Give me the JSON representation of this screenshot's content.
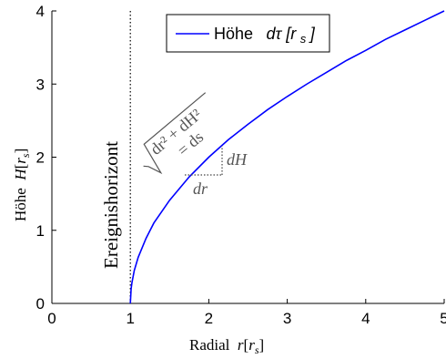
{
  "chart_data": {
    "type": "line",
    "xlabel": "Radial r[r_s]",
    "xlabel_parts": {
      "text": "Radial ",
      "var": "r",
      "sub": "s"
    },
    "ylabel": "Höhe H[r_s]",
    "ylabel_parts": {
      "text": "Höhe ",
      "var": "H",
      "sub": "s"
    },
    "xlim": [
      0,
      5
    ],
    "ylim": [
      0,
      4
    ],
    "xticks": [
      0,
      1,
      2,
      3,
      4,
      5
    ],
    "yticks": [
      0,
      1,
      2,
      3,
      4
    ],
    "grid": false,
    "legend_position": "top-right",
    "series": [
      {
        "name": "Höhe  dτ [r_s]",
        "name_parts": {
          "text": "Höhe  ",
          "var": "dτ [r",
          "sub": "s",
          "close": "]"
        },
        "color": "#0000ff",
        "x": [
          1.0,
          1.01,
          1.02,
          1.05,
          1.1,
          1.2,
          1.3,
          1.5,
          1.75,
          2.0,
          2.25,
          2.5,
          2.75,
          3.0,
          3.25,
          3.5,
          3.75,
          4.0,
          4.25,
          4.5,
          4.75,
          5.0
        ],
        "y": [
          0,
          0.2,
          0.28,
          0.45,
          0.63,
          0.89,
          1.1,
          1.41,
          1.73,
          2.0,
          2.24,
          2.45,
          2.65,
          2.83,
          3.0,
          3.16,
          3.32,
          3.46,
          3.61,
          3.74,
          3.87,
          4.0
        ]
      }
    ],
    "reference_lines": [
      {
        "x": 1,
        "style": "dotted",
        "label": "Ereignishorizont"
      }
    ],
    "annotations": {
      "hypotenuse": "√(dr² + dH²) = ds",
      "dH": "dH",
      "dr": "dr"
    }
  }
}
